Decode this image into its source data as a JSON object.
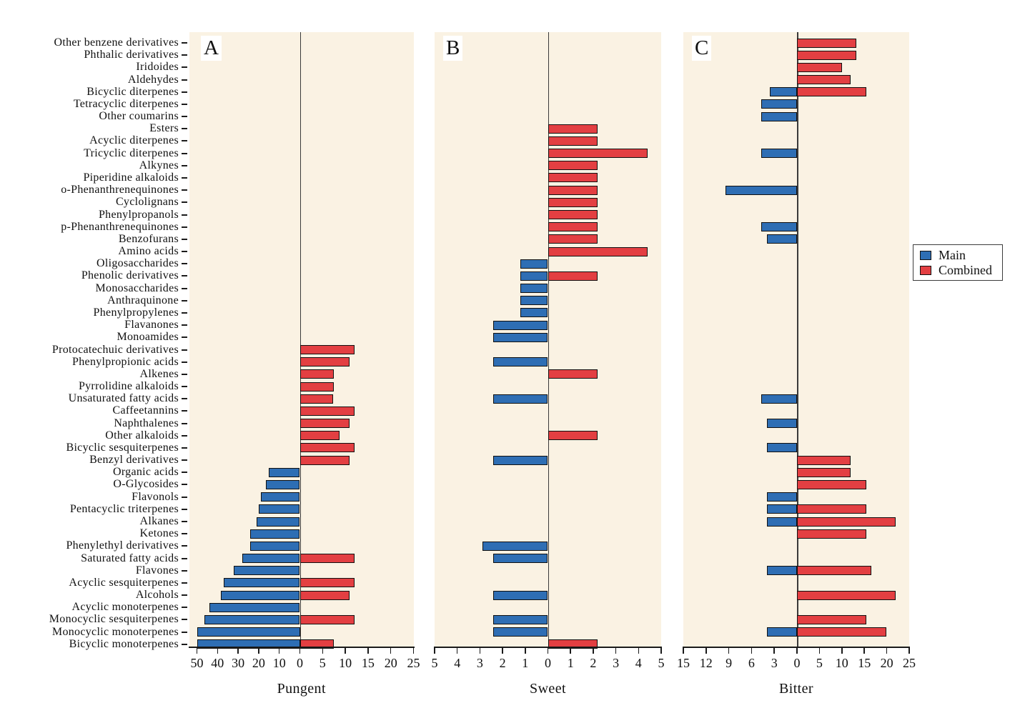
{
  "chart_data": {
    "type": "bar",
    "orientation": "horizontal-diverging",
    "grid": false,
    "legend": {
      "position": "right",
      "items": [
        {
          "label": "Main",
          "color": "#2e6eb4"
        },
        {
          "label": "Combined",
          "color": "#e33f42"
        }
      ]
    },
    "colors": {
      "main": "#2e6eb4",
      "combined": "#e33f42",
      "panel_background": "#faf2e3",
      "bar_border": "#101010"
    },
    "categories": [
      "Other benzene derivatives",
      "Phthalic derivatives",
      "Iridoides",
      "Aldehydes",
      "Bicyclic diterpenes",
      "Tetracyclic diterpenes",
      "Other coumarins",
      "Esters",
      "Acyclic diterpenes",
      "Tricyclic diterpenes",
      "Alkynes",
      "Piperidine alkaloids",
      "o-Phenanthrenequinones",
      "Cyclolignans",
      "Phenylpropanols",
      "p-Phenanthrenequinones",
      "Benzofurans",
      "Amino acids",
      "Oligosaccharides",
      "Phenolic derivatives",
      "Monosaccharides",
      "Anthraquinone",
      "Phenylpropylenes",
      "Flavanones",
      "Monoamides",
      "Protocatechuic derivatives",
      "Phenylpropionic acids",
      "Alkenes",
      "Pyrrolidine alkaloids",
      "Unsaturated fatty acids",
      "Caffeetannins",
      "Naphthalenes",
      "Other alkaloids",
      "Bicyclic sesquiterpenes",
      "Benzyl derivatives",
      "Organic acids",
      "O-Glycosides",
      "Flavonols",
      "Pentacyclic triterpenes",
      "Alkanes",
      "Ketones",
      "Phenylethyl derivatives",
      "Saturated fatty acids",
      "Flavones",
      "Acyclic sesquiterpenes",
      "Alcohols",
      "Acyclic monoterpenes",
      "Monocyclic sesquiterpenes",
      "Monocyclic monoterpenes",
      "Bicyclic monoterpenes"
    ],
    "panels": [
      {
        "label": "A",
        "xlabel": "Pungent",
        "left_axis": {
          "title_series": "Main",
          "max": 50,
          "ticks": [
            50,
            40,
            30,
            20,
            10
          ]
        },
        "right_axis": {
          "title_series": "Combined",
          "max": 25,
          "ticks": [
            5,
            10,
            15,
            20,
            25
          ]
        },
        "zero_label": "0",
        "series": [
          {
            "name": "Main",
            "side": "left",
            "values": [
              null,
              null,
              null,
              null,
              null,
              null,
              null,
              null,
              null,
              null,
              null,
              null,
              null,
              null,
              null,
              null,
              null,
              null,
              null,
              null,
              null,
              null,
              null,
              null,
              null,
              null,
              null,
              null,
              null,
              null,
              null,
              null,
              null,
              null,
              null,
              15,
              16.5,
              19,
              20,
              21,
              24,
              24,
              28,
              32,
              37,
              38.5,
              44,
              46.5,
              50,
              50
            ]
          },
          {
            "name": "Combined",
            "side": "right",
            "values": [
              null,
              null,
              null,
              null,
              null,
              null,
              null,
              null,
              null,
              null,
              null,
              null,
              null,
              null,
              null,
              null,
              null,
              null,
              null,
              null,
              null,
              null,
              null,
              null,
              null,
              12,
              11,
              7.5,
              7.5,
              7.3,
              12,
              11,
              8.7,
              12,
              11,
              null,
              null,
              null,
              null,
              null,
              null,
              null,
              12,
              null,
              12,
              11,
              null,
              12,
              null,
              7.5
            ]
          }
        ]
      },
      {
        "label": "B",
        "xlabel": "Sweet",
        "left_axis": {
          "title_series": "Main",
          "max": 5,
          "ticks": [
            5,
            4,
            3,
            2,
            1
          ]
        },
        "right_axis": {
          "title_series": "Combined",
          "max": 5,
          "ticks": [
            1,
            2,
            3,
            4,
            5
          ]
        },
        "zero_label": "0",
        "series": [
          {
            "name": "Main",
            "side": "left",
            "values": [
              null,
              null,
              null,
              null,
              null,
              null,
              null,
              null,
              null,
              null,
              null,
              null,
              null,
              null,
              null,
              null,
              null,
              null,
              1.2,
              1.2,
              1.2,
              1.2,
              1.2,
              2.4,
              2.4,
              null,
              2.4,
              null,
              null,
              2.4,
              null,
              null,
              null,
              null,
              2.4,
              null,
              null,
              null,
              null,
              null,
              null,
              2.9,
              2.4,
              null,
              null,
              2.4,
              null,
              2.4,
              2.4,
              null
            ]
          },
          {
            "name": "Combined",
            "side": "right",
            "values": [
              null,
              null,
              null,
              null,
              null,
              null,
              null,
              2.2,
              2.2,
              4.4,
              2.2,
              2.2,
              2.2,
              2.2,
              2.2,
              2.2,
              2.2,
              4.4,
              null,
              2.2,
              null,
              null,
              null,
              null,
              null,
              null,
              null,
              2.2,
              null,
              null,
              null,
              null,
              2.2,
              null,
              null,
              null,
              null,
              null,
              null,
              null,
              null,
              null,
              null,
              null,
              null,
              null,
              null,
              null,
              null,
              2.2
            ]
          }
        ]
      },
      {
        "label": "C",
        "xlabel": "Bitter",
        "left_axis": {
          "title_series": "Main",
          "max": 15,
          "ticks": [
            15,
            12,
            9,
            6,
            3
          ]
        },
        "right_axis": {
          "title_series": "Combined",
          "max": 25,
          "ticks": [
            5,
            10,
            15,
            20,
            25
          ]
        },
        "zero_label": "0",
        "series": [
          {
            "name": "Main",
            "side": "left",
            "values": [
              null,
              null,
              null,
              null,
              3.6,
              4.7,
              4.7,
              null,
              null,
              4.7,
              null,
              null,
              9.4,
              null,
              null,
              4.7,
              4,
              null,
              null,
              null,
              null,
              null,
              null,
              null,
              null,
              null,
              null,
              null,
              null,
              4.7,
              null,
              4,
              null,
              4,
              null,
              null,
              null,
              4,
              4,
              4,
              null,
              null,
              null,
              4,
              null,
              null,
              null,
              null,
              4,
              null
            ]
          },
          {
            "name": "Combined",
            "side": "right",
            "values": [
              13.2,
              13.2,
              10,
              12,
              15.4,
              null,
              null,
              null,
              null,
              null,
              null,
              null,
              null,
              null,
              null,
              null,
              null,
              null,
              null,
              null,
              null,
              null,
              null,
              null,
              null,
              null,
              null,
              null,
              null,
              null,
              null,
              null,
              null,
              null,
              12,
              12,
              15.4,
              null,
              15.4,
              21.9,
              15.4,
              null,
              null,
              16.5,
              null,
              21.9,
              null,
              15.4,
              19.9,
              null
            ]
          }
        ]
      }
    ]
  }
}
